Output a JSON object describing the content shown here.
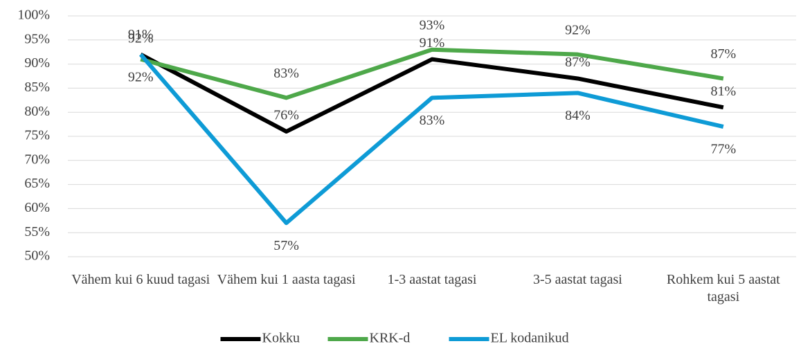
{
  "chart_data": {
    "type": "line",
    "categories": [
      "Vähem kui 6 kuud tagasi",
      "Vähem kui 1 aasta tagasi",
      "1-3 aastat tagasi",
      "3-5 aastat tagasi",
      "Rohkem kui 5 aastat tagasi"
    ],
    "series": [
      {
        "name": "Kokku",
        "color": "#000000",
        "values": [
          92,
          76,
          91,
          87,
          81
        ],
        "value_labels": [
          "92%",
          "76%",
          "91%",
          "87%",
          "81%"
        ]
      },
      {
        "name": "KRK-d",
        "color": "#4ea84a",
        "values": [
          91,
          83,
          93,
          92,
          87
        ],
        "value_labels": [
          "91%",
          "83%",
          "93%",
          "92%",
          "87%"
        ]
      },
      {
        "name": "EL kodanikud",
        "color": "#0e9bd6",
        "values": [
          92,
          57,
          83,
          84,
          77
        ],
        "value_labels": [
          "92%",
          "57%",
          "83%",
          "84%",
          "77%"
        ]
      }
    ],
    "ylim": [
      50,
      100
    ],
    "yticks": [
      {
        "value": 50,
        "label": "50%"
      },
      {
        "value": 55,
        "label": "55%"
      },
      {
        "value": 60,
        "label": "60%"
      },
      {
        "value": 65,
        "label": "65%"
      },
      {
        "value": 70,
        "label": "70%"
      },
      {
        "value": 75,
        "label": "75%"
      },
      {
        "value": 80,
        "label": "80%"
      },
      {
        "value": 85,
        "label": "85%"
      },
      {
        "value": 90,
        "label": "90%"
      },
      {
        "value": 95,
        "label": "95%"
      },
      {
        "value": 100,
        "label": "100%"
      }
    ],
    "grid": true,
    "legend": "bottom"
  }
}
